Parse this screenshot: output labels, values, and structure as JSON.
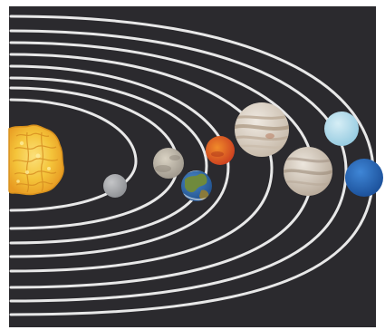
{
  "scene": {
    "subject": "solar-system-model",
    "colors": {
      "background": "#2b2a2e",
      "frame": "#ffffff",
      "orbit": "#e8e8e8"
    },
    "bodies": [
      {
        "name": "sun",
        "colors": [
          "#f4c43a",
          "#e89a22",
          "#fbe07a"
        ]
      },
      {
        "name": "mercury",
        "colors": [
          "#9d9fa3",
          "#c4c5c7"
        ]
      },
      {
        "name": "venus",
        "colors": [
          "#a9a195",
          "#d9d2c3"
        ]
      },
      {
        "name": "earth",
        "colors": [
          "#2f6fb0",
          "#6f8a3c",
          "#c8d9e6"
        ]
      },
      {
        "name": "mars",
        "colors": [
          "#d9462a",
          "#f08b2a"
        ]
      },
      {
        "name": "jupiter",
        "colors": [
          "#d8d1c8",
          "#b9a793",
          "#efe9e1"
        ]
      },
      {
        "name": "saturn",
        "colors": [
          "#cfc7bb",
          "#a8998a",
          "#ece6dd"
        ]
      },
      {
        "name": "uranus",
        "colors": [
          "#a7d7ea",
          "#d6eef6"
        ]
      },
      {
        "name": "neptune",
        "colors": [
          "#1f5fb4",
          "#3f86d6"
        ]
      }
    ]
  }
}
